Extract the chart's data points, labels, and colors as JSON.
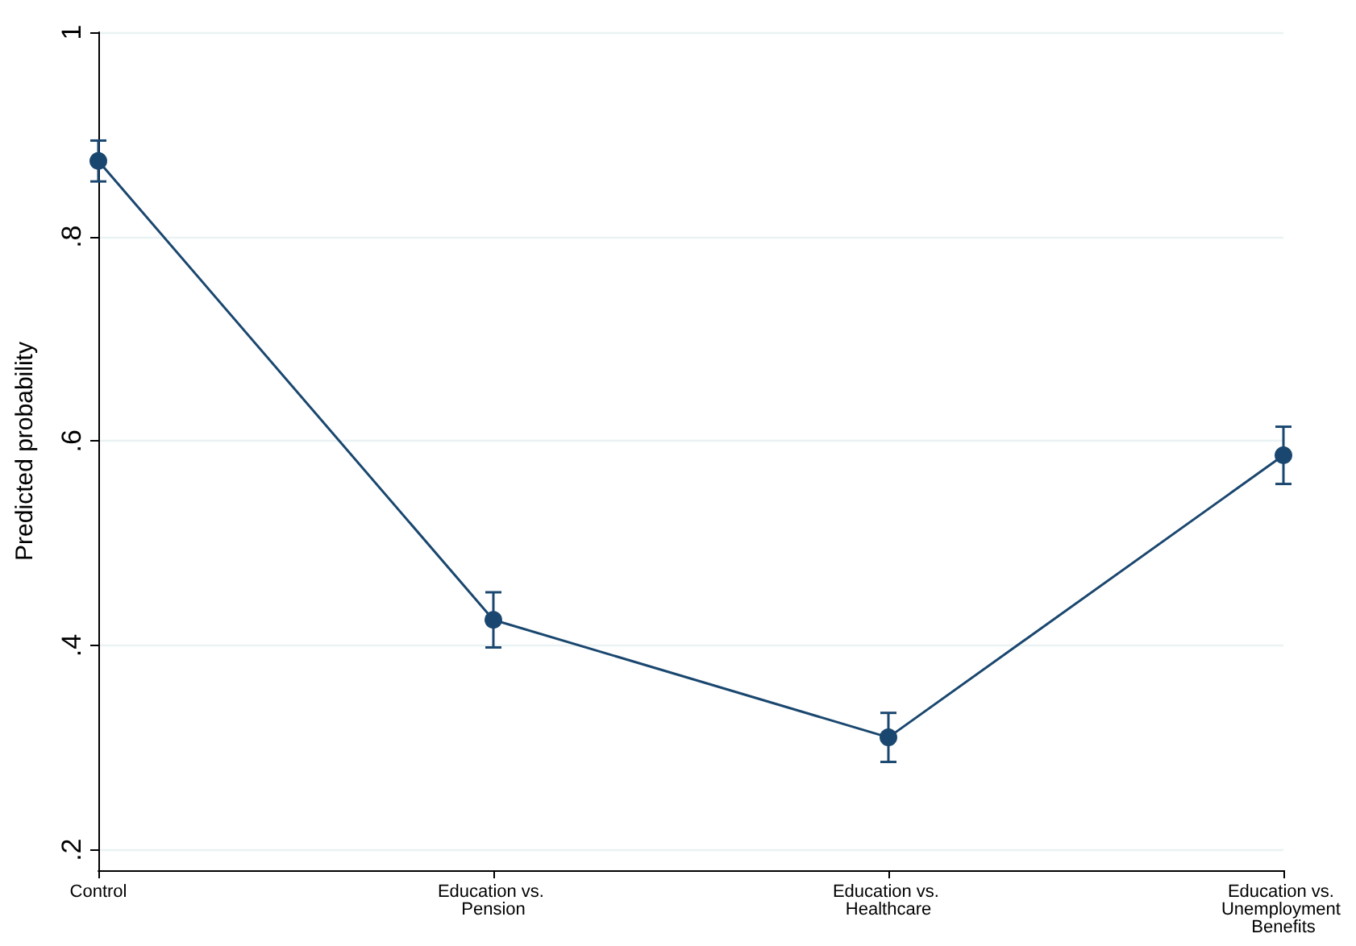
{
  "chart_data": {
    "type": "line",
    "ylabel": "Predicted probability",
    "categories": [
      "Control",
      "Education vs. Pension",
      "Education vs. Healthcare",
      "Education vs. Unemployment Benefits"
    ],
    "series": [
      {
        "color": "#1a476f",
        "values": [
          0.874,
          0.425,
          0.31,
          0.586
        ],
        "errors": [
          0.02,
          0.027,
          0.024,
          0.028
        ]
      }
    ],
    "ylim": [
      0.18,
      1
    ],
    "yticks": [
      {
        "value": 0.2,
        "label": ".2"
      },
      {
        "value": 0.4,
        "label": ".4"
      },
      {
        "value": 0.6,
        "label": ".6"
      },
      {
        "value": 0.8,
        "label": ".8"
      },
      {
        "value": 1,
        "label": "1"
      }
    ],
    "grid": "y",
    "marker": "circle",
    "line_style": "solid"
  }
}
